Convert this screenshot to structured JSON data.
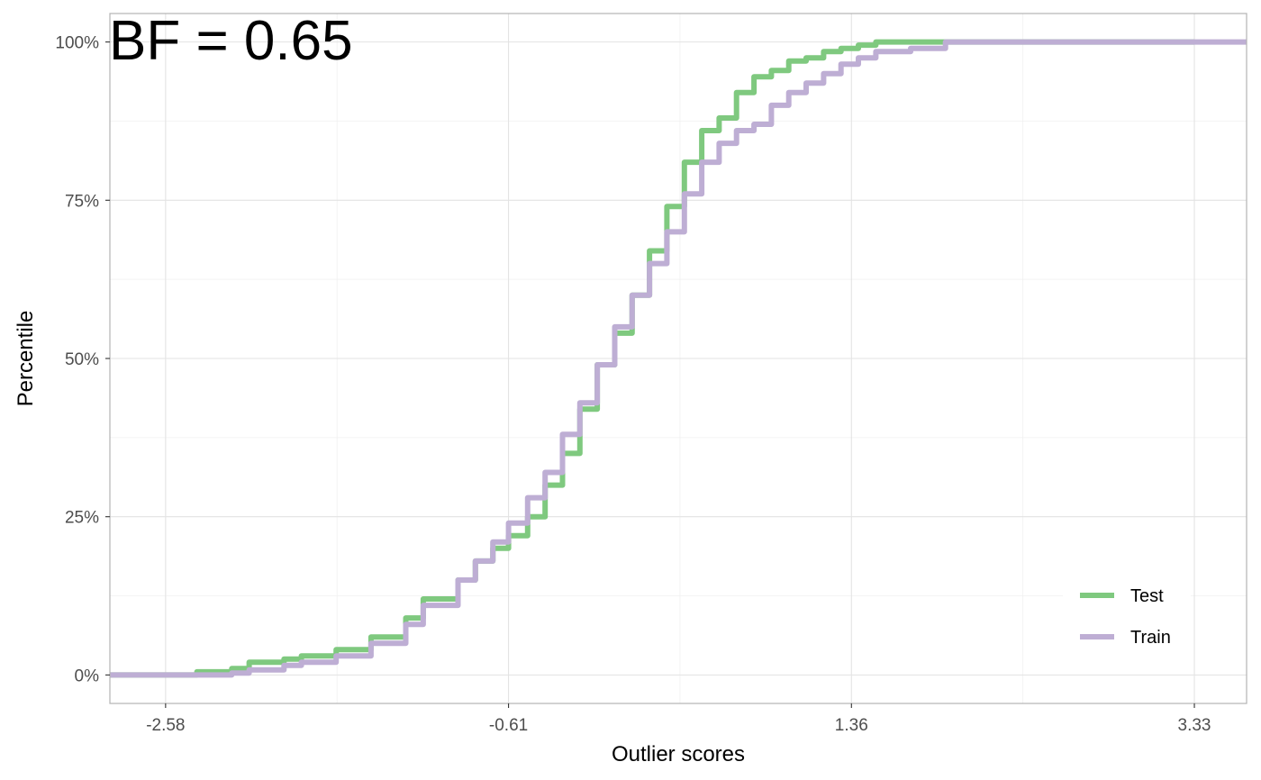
{
  "chart_data": {
    "type": "line",
    "title": "",
    "annotation": "BF = 0.65",
    "xlabel": "Outlier scores",
    "ylabel": "Percentile",
    "xlim": [
      -2.9,
      3.63
    ],
    "ylim": [
      -0.045,
      1.045
    ],
    "x_ticks": [
      -2.58,
      -0.61,
      1.36,
      3.33
    ],
    "x_tick_labels": [
      "-2.58",
      "-0.61",
      "1.36",
      "3.33"
    ],
    "y_ticks": [
      0,
      0.25,
      0.5,
      0.75,
      1.0
    ],
    "y_tick_labels": [
      "0%",
      "25%",
      "50%",
      "75%",
      "100%"
    ],
    "grid": true,
    "legend_position": "bottom-right",
    "series": [
      {
        "name": "Test",
        "color": "#7fc97f",
        "x": [
          -2.9,
          -2.58,
          -2.4,
          -2.2,
          -2.1,
          -1.9,
          -1.8,
          -1.6,
          -1.4,
          -1.2,
          -1.1,
          -0.9,
          -0.8,
          -0.7,
          -0.61,
          -0.5,
          -0.4,
          -0.3,
          -0.2,
          -0.1,
          0.0,
          0.1,
          0.2,
          0.3,
          0.4,
          0.5,
          0.6,
          0.7,
          0.8,
          0.9,
          1.0,
          1.1,
          1.2,
          1.3,
          1.4,
          1.5,
          1.7,
          1.9,
          2.1,
          2.3,
          2.5,
          2.9,
          3.33
        ],
        "y": [
          0.0,
          0.0,
          0.005,
          0.01,
          0.02,
          0.025,
          0.03,
          0.04,
          0.06,
          0.09,
          0.12,
          0.15,
          0.18,
          0.2,
          0.22,
          0.25,
          0.3,
          0.35,
          0.42,
          0.49,
          0.54,
          0.6,
          0.67,
          0.74,
          0.81,
          0.86,
          0.88,
          0.92,
          0.945,
          0.955,
          0.97,
          0.975,
          0.985,
          0.99,
          0.995,
          1.0,
          1.0,
          1.0,
          1.0,
          1.0,
          1.0,
          1.0,
          1.0
        ]
      },
      {
        "name": "Train",
        "color": "#beaed4",
        "x": [
          -2.9,
          -2.58,
          -2.4,
          -2.2,
          -2.1,
          -1.9,
          -1.8,
          -1.6,
          -1.4,
          -1.2,
          -1.1,
          -0.9,
          -0.8,
          -0.7,
          -0.61,
          -0.5,
          -0.4,
          -0.3,
          -0.2,
          -0.1,
          0.0,
          0.1,
          0.2,
          0.3,
          0.4,
          0.5,
          0.6,
          0.7,
          0.8,
          0.9,
          1.0,
          1.1,
          1.2,
          1.3,
          1.4,
          1.5,
          1.7,
          1.9,
          2.1,
          2.3,
          2.5,
          2.9,
          3.63
        ],
        "y": [
          0.0,
          0.0,
          0.0,
          0.003,
          0.008,
          0.015,
          0.02,
          0.03,
          0.05,
          0.08,
          0.11,
          0.15,
          0.18,
          0.21,
          0.24,
          0.28,
          0.32,
          0.38,
          0.43,
          0.49,
          0.55,
          0.6,
          0.65,
          0.7,
          0.76,
          0.81,
          0.84,
          0.86,
          0.87,
          0.9,
          0.92,
          0.935,
          0.95,
          0.965,
          0.975,
          0.985,
          0.99,
          1.0,
          1.0,
          1.0,
          1.0,
          1.0,
          1.0
        ]
      }
    ]
  }
}
